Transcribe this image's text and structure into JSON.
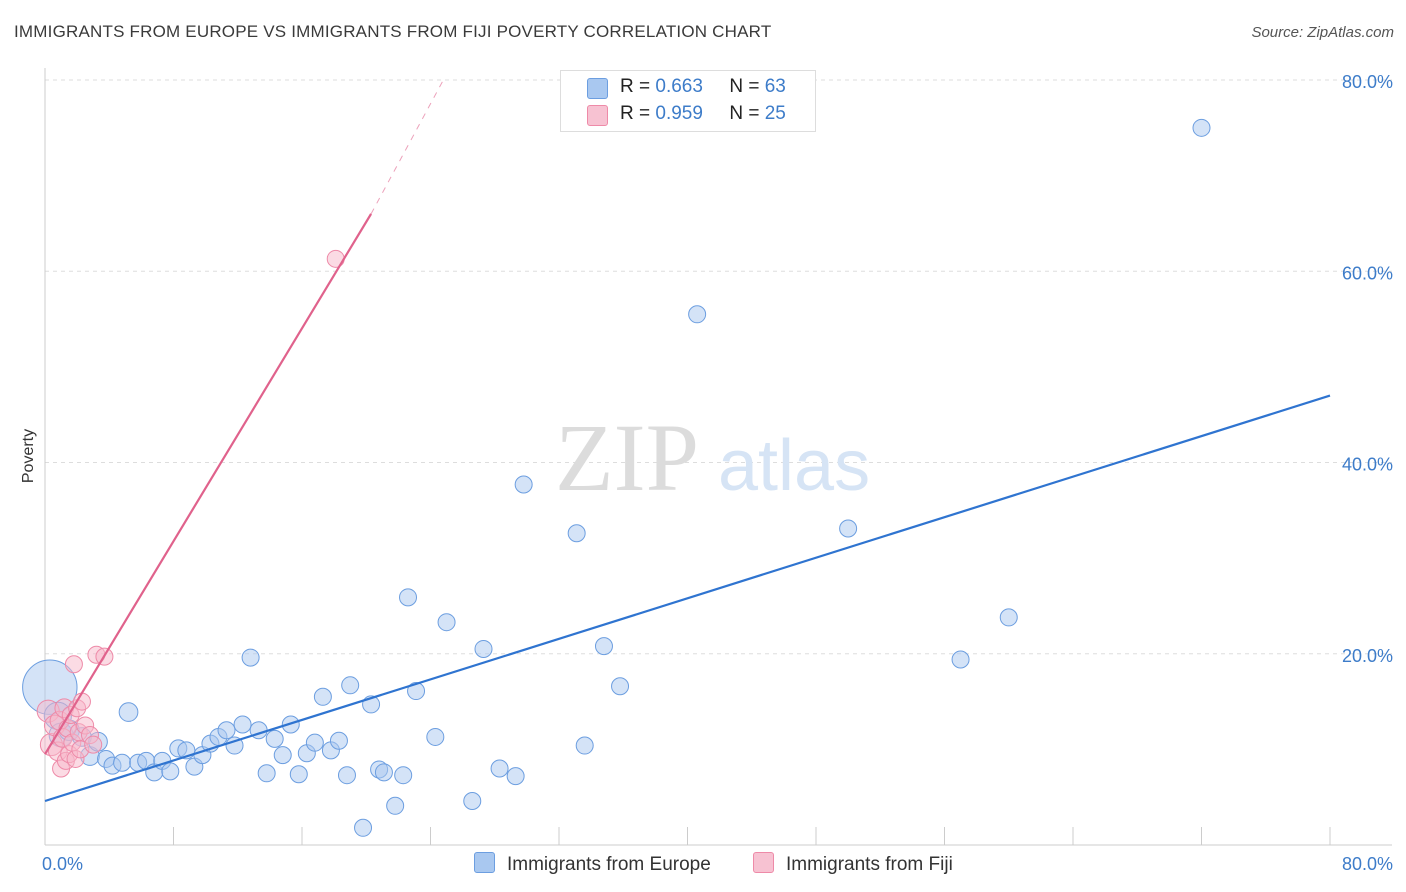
{
  "title": "IMMIGRANTS FROM EUROPE VS IMMIGRANTS FROM FIJI POVERTY CORRELATION CHART",
  "source": "Source: ZipAtlas.com",
  "watermark": {
    "zip": "ZIP",
    "atlas": "atlas"
  },
  "colors": {
    "europe_fill": "#a9c8f0",
    "europe_stroke": "#6c9ee0",
    "europe_line": "#2f74d0",
    "fiji_fill": "#f7b7c9",
    "fiji_stroke": "#ee8aa8",
    "fiji_line": "#e0628c",
    "tick_text": "#3d7cc9",
    "grid": "#dddddd"
  },
  "legend": {
    "europe": {
      "r_label": "R = ",
      "r_value": "0.663",
      "n_label": "N = ",
      "n_value": "63"
    },
    "fiji": {
      "r_label": "R = ",
      "r_value": "0.959",
      "n_label": "N = ",
      "n_value": "25"
    }
  },
  "bottom_legend": {
    "europe": "Immigrants from Europe",
    "fiji": "Immigrants from Fiji"
  },
  "chart_data": {
    "type": "scatter",
    "title": "IMMIGRANTS FROM EUROPE VS IMMIGRANTS FROM FIJI POVERTY CORRELATION CHART",
    "xlabel": "",
    "ylabel": "Poverty",
    "xlim": [
      0,
      80
    ],
    "ylim": [
      0,
      80
    ],
    "x_tick_labels": [
      "0.0%",
      "80.0%"
    ],
    "y_ticks": [
      20,
      40,
      60,
      80
    ],
    "y_tick_labels": [
      "20.0%",
      "40.0%",
      "60.0%",
      "80.0%"
    ],
    "grid": true,
    "series": [
      {
        "name": "Immigrants from Europe",
        "R": 0.663,
        "N": 63,
        "trend": {
          "x0": 0,
          "y0": 4.6,
          "x1": 80,
          "y1": 47.0
        },
        "points": [
          [
            0.3,
            16.5,
            3.2
          ],
          [
            0.8,
            13.5,
            1.6
          ],
          [
            1.0,
            11.5,
            1.4
          ],
          [
            1.5,
            12.0,
            1.2
          ],
          [
            2.3,
            11.3,
            1.1
          ],
          [
            2.8,
            9.3,
            1.1
          ],
          [
            3.3,
            10.8,
            1.1
          ],
          [
            3.8,
            9.0,
            1.0
          ],
          [
            4.2,
            8.3,
            1.0
          ],
          [
            4.8,
            8.6,
            1.0
          ],
          [
            5.2,
            13.9,
            1.1
          ],
          [
            5.8,
            8.6,
            1.0
          ],
          [
            6.3,
            8.8,
            1.0
          ],
          [
            6.8,
            7.6,
            1.0
          ],
          [
            7.3,
            8.8,
            1.0
          ],
          [
            7.8,
            7.7,
            1.0
          ],
          [
            8.3,
            10.1,
            1.0
          ],
          [
            8.8,
            9.9,
            1.0
          ],
          [
            9.3,
            8.2,
            1.0
          ],
          [
            9.8,
            9.4,
            1.0
          ],
          [
            10.3,
            10.6,
            1.0
          ],
          [
            10.8,
            11.3,
            1.0
          ],
          [
            11.3,
            12.0,
            1.0
          ],
          [
            11.8,
            10.4,
            1.0
          ],
          [
            12.3,
            12.6,
            1.0
          ],
          [
            12.8,
            19.6,
            1.0
          ],
          [
            13.3,
            12.0,
            1.0
          ],
          [
            13.8,
            7.5,
            1.0
          ],
          [
            14.3,
            11.1,
            1.0
          ],
          [
            14.8,
            9.4,
            1.0
          ],
          [
            15.3,
            12.6,
            1.0
          ],
          [
            15.8,
            7.4,
            1.0
          ],
          [
            16.3,
            9.6,
            1.0
          ],
          [
            16.8,
            10.7,
            1.0
          ],
          [
            17.3,
            15.5,
            1.0
          ],
          [
            17.8,
            9.9,
            1.0
          ],
          [
            18.3,
            10.9,
            1.0
          ],
          [
            18.8,
            7.3,
            1.0
          ],
          [
            19.0,
            16.7,
            1.0
          ],
          [
            19.8,
            1.8,
            1.0
          ],
          [
            20.3,
            14.7,
            1.0
          ],
          [
            20.8,
            7.9,
            1.0
          ],
          [
            21.1,
            7.6,
            1.0
          ],
          [
            21.8,
            4.1,
            1.0
          ],
          [
            22.3,
            7.3,
            1.0
          ],
          [
            22.6,
            25.9,
            1.0
          ],
          [
            23.1,
            16.1,
            1.0
          ],
          [
            24.3,
            11.3,
            1.0
          ],
          [
            25.0,
            23.3,
            1.0
          ],
          [
            26.6,
            4.6,
            1.0
          ],
          [
            27.3,
            20.5,
            1.0
          ],
          [
            28.3,
            8.0,
            1.0
          ],
          [
            29.3,
            7.2,
            1.0
          ],
          [
            29.8,
            37.7,
            1.0
          ],
          [
            33.1,
            32.6,
            1.0
          ],
          [
            33.6,
            10.4,
            1.0
          ],
          [
            34.8,
            20.8,
            1.0
          ],
          [
            35.8,
            16.6,
            1.0
          ],
          [
            40.6,
            55.5,
            1.0
          ],
          [
            50.0,
            33.1,
            1.0
          ],
          [
            57.0,
            19.4,
            1.0
          ],
          [
            60.0,
            23.8,
            1.0
          ],
          [
            72.0,
            75.0,
            1.0
          ]
        ]
      },
      {
        "name": "Immigrants from Fiji",
        "R": 0.959,
        "N": 25,
        "trend": {
          "x0": 0,
          "y0": 9.5,
          "x1": 20.3,
          "y1": 66.0,
          "dashed_to_x": 24.8,
          "dashed_to_y": 80.0
        },
        "points": [
          [
            0.2,
            14.0,
            1.3
          ],
          [
            0.4,
            10.5,
            1.3
          ],
          [
            0.6,
            12.5,
            1.2
          ],
          [
            0.8,
            9.8,
            1.1
          ],
          [
            0.9,
            13.0,
            1.1
          ],
          [
            1.0,
            8.0,
            1.0
          ],
          [
            1.1,
            11.2,
            1.1
          ],
          [
            1.2,
            14.3,
            1.1
          ],
          [
            1.3,
            8.8,
            1.0
          ],
          [
            1.4,
            12.2,
            1.0
          ],
          [
            1.5,
            9.5,
            1.0
          ],
          [
            1.6,
            13.6,
            1.0
          ],
          [
            1.7,
            10.7,
            1.0
          ],
          [
            1.8,
            18.9,
            1.0
          ],
          [
            1.9,
            9.0,
            1.0
          ],
          [
            2.0,
            14.3,
            1.0
          ],
          [
            2.1,
            11.8,
            1.0
          ],
          [
            2.2,
            10.0,
            1.0
          ],
          [
            2.3,
            15.0,
            1.0
          ],
          [
            2.5,
            12.5,
            1.0
          ],
          [
            2.8,
            11.5,
            1.0
          ],
          [
            3.0,
            10.5,
            1.0
          ],
          [
            3.2,
            19.9,
            1.0
          ],
          [
            3.7,
            19.7,
            1.0
          ],
          [
            18.1,
            61.3,
            1.0
          ]
        ]
      }
    ]
  }
}
